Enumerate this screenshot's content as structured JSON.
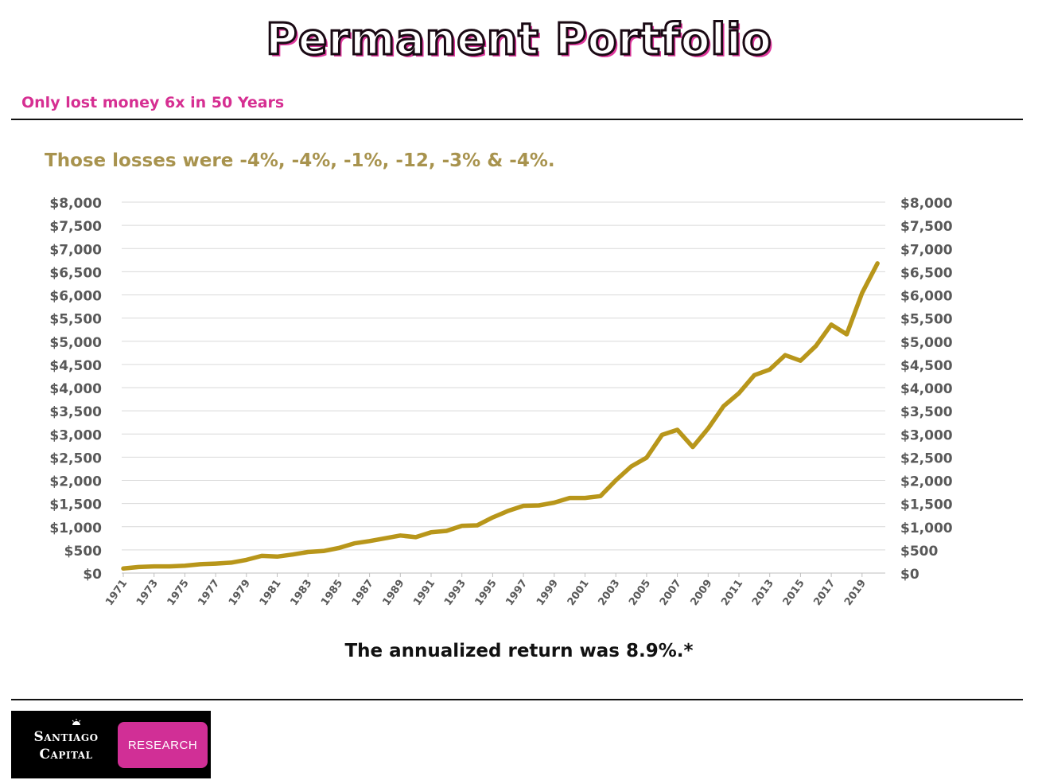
{
  "header": {
    "title": "Permanent Portfolio",
    "subtitle": "Only lost money 6x in 50 Years"
  },
  "annotation": "Those losses were -4%, -4%, -1%,  -12, -3% & -4%.",
  "footnote": "The annualized return was 8.9%.*",
  "logo": {
    "line1": "Santiago",
    "line2": "Capital",
    "badge": "RESEARCH",
    "badge_color": "#d12f96"
  },
  "colors": {
    "line": "#b8961a",
    "title_accent": "#e0389e",
    "subtitle": "#d62f92",
    "annotation": "#a8934e"
  },
  "chart_data": {
    "type": "line",
    "title": "",
    "xlabel": "",
    "ylabel": "",
    "ylim": [
      0,
      8000
    ],
    "y_ticks": [
      "$0",
      "$500",
      "$1,000",
      "$1,500",
      "$2,000",
      "$2,500",
      "$3,000",
      "$3,500",
      "$4,000",
      "$4,500",
      "$5,000",
      "$5,500",
      "$6,000",
      "$6,500",
      "$7,000",
      "$7,500",
      "$8,000"
    ],
    "y_tick_values": [
      0,
      500,
      1000,
      1500,
      2000,
      2500,
      3000,
      3500,
      4000,
      4500,
      5000,
      5500,
      6000,
      6500,
      7000,
      7500,
      8000
    ],
    "x_tick_labels": [
      "1971",
      "1973",
      "1975",
      "1977",
      "1979",
      "1981",
      "1983",
      "1985",
      "1987",
      "1989",
      "1991",
      "1993",
      "1995",
      "1997",
      "1999",
      "2001",
      "2003",
      "2005",
      "2007",
      "2009",
      "2011",
      "2013",
      "2015",
      "2017",
      "2019"
    ],
    "grid": true,
    "dual_y_axis": true,
    "series": [
      {
        "x": [
          1971,
          1972,
          1973,
          1974,
          1975,
          1976,
          1977,
          1978,
          1979,
          1980,
          1981,
          1982,
          1983,
          1984,
          1985,
          1986,
          1987,
          1988,
          1989,
          1990,
          1991,
          1992,
          1993,
          1994,
          1995,
          1996,
          1997,
          1998,
          1999,
          2000,
          2001,
          2002,
          2003,
          2004,
          2005,
          2006,
          2007,
          2008,
          2009,
          2010,
          2011,
          2012,
          2013,
          2014,
          2015,
          2016,
          2017,
          2018,
          2019,
          2020
        ],
        "values": [
          100,
          130,
          145,
          145,
          160,
          190,
          205,
          225,
          285,
          370,
          355,
          400,
          455,
          475,
          540,
          640,
          690,
          750,
          810,
          775,
          880,
          910,
          1020,
          1030,
          1200,
          1340,
          1450,
          1460,
          1520,
          1620,
          1620,
          1660,
          2000,
          2300,
          2490,
          2980,
          3090,
          2720,
          3120,
          3600,
          3880,
          4270,
          4390,
          4700,
          4580,
          4900,
          5360,
          5150,
          6040,
          6680
        ]
      }
    ]
  }
}
